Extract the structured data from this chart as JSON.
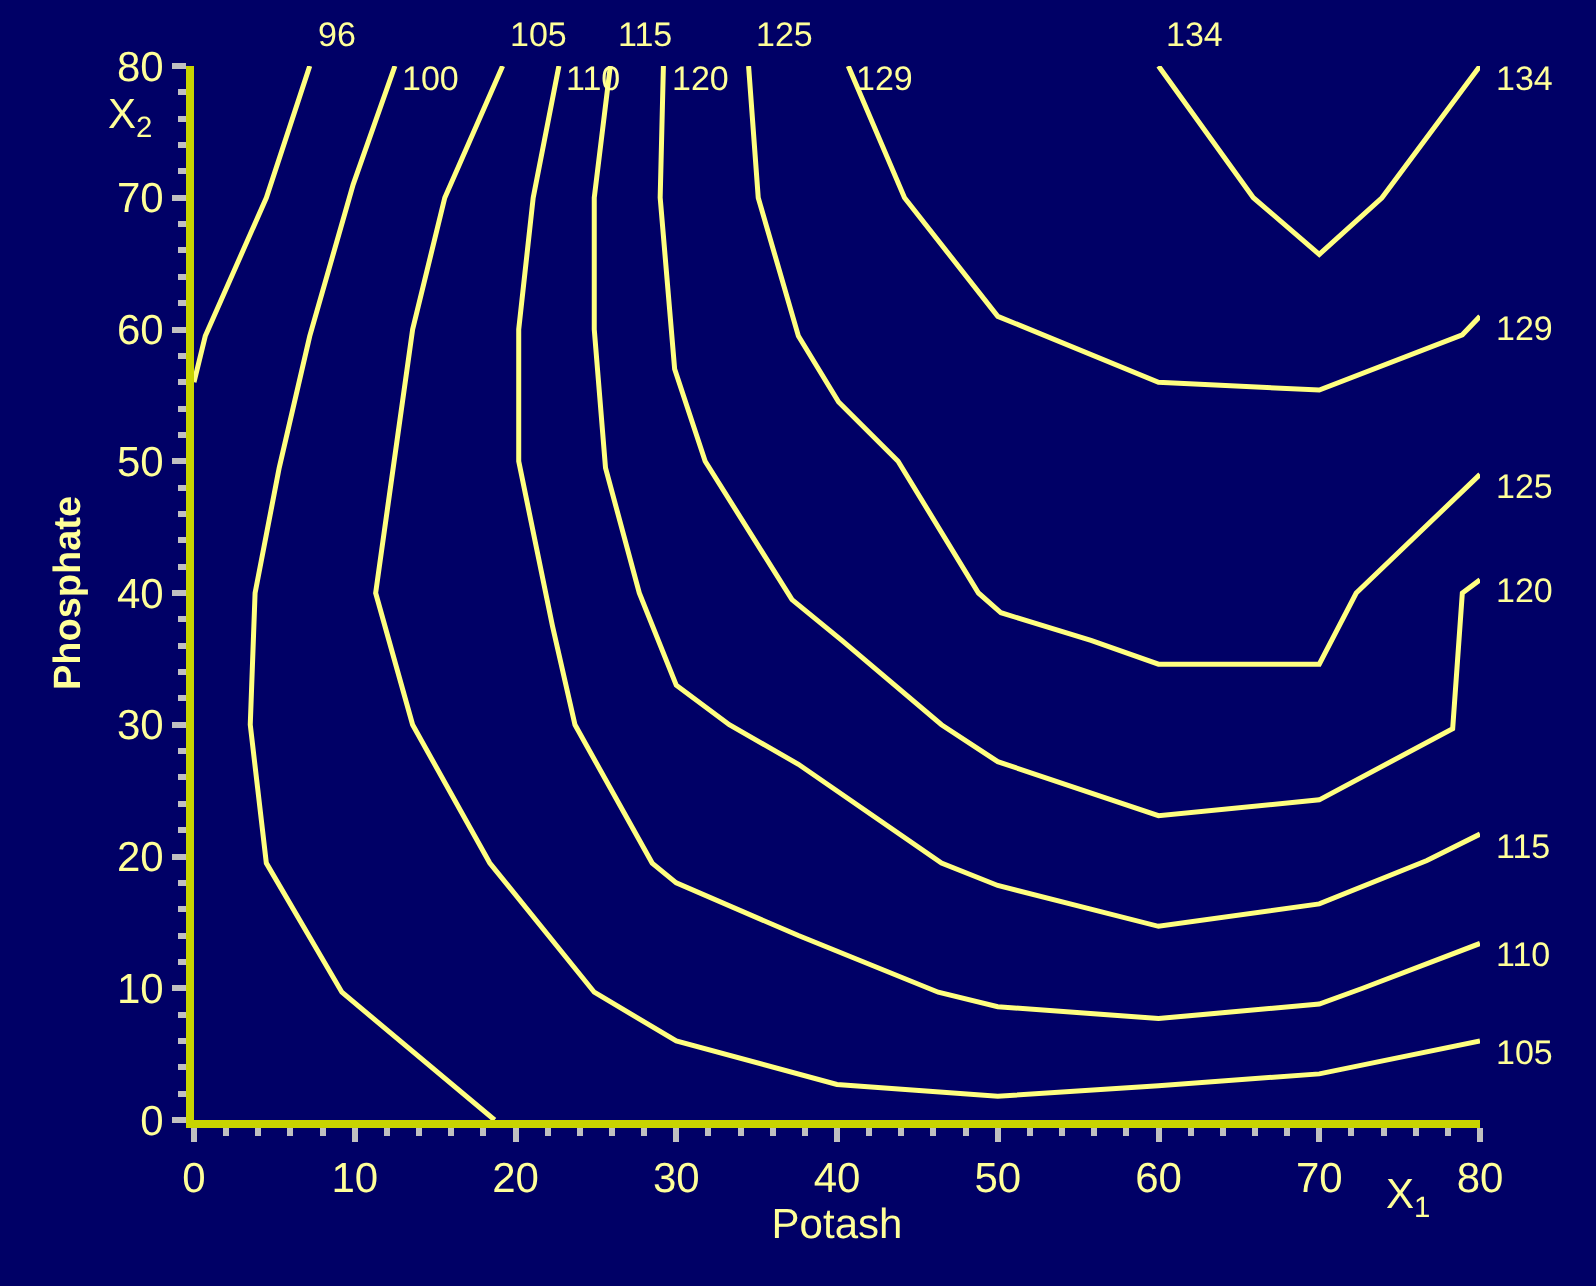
{
  "chart_data": {
    "type": "line",
    "xlabel": "Potash",
    "ylabel": "Phosphate",
    "annotations": [
      "X$_{1}$",
      "X$_{2}$"
    ],
    "xlim": [
      0,
      80
    ],
    "xticks": [
      0,
      10,
      20,
      30,
      40,
      50,
      60,
      70,
      80
    ],
    "ylim": [
      0,
      80
    ],
    "yticks": [
      0,
      10,
      20,
      30,
      40,
      50,
      60,
      70,
      80
    ],
    "grid": false,
    "legend": false,
    "marker": "none",
    "line_style": "solid",
    "series": [
      {
        "name": "96",
        "color": "#ffff80",
        "x": [
          7.2,
          4.5,
          0.7,
          0
        ],
        "values": [
          80,
          70,
          59.5,
          56
        ]
      },
      {
        "name": "100",
        "color": "#ffff80",
        "x": [
          12.5,
          9.9,
          7.2,
          5.3,
          3.8,
          3.5,
          4.5,
          9.2,
          18.7
        ],
        "values": [
          80,
          71,
          59.5,
          49.5,
          40,
          30,
          19.5,
          9.7,
          0
        ]
      },
      {
        "name": "105",
        "color": "#ffff80",
        "x": [
          19.2,
          15.6,
          13.6,
          11.3,
          13.6,
          18.4,
          24.9,
          30,
          40,
          50,
          60,
          70,
          80
        ],
        "values": [
          80,
          70,
          60,
          40,
          30,
          19.5,
          9.7,
          6,
          2.7,
          1.8,
          2.6,
          3.5,
          6
        ]
      },
      {
        "name": "110",
        "color": "#ffff80",
        "x": [
          22.7,
          21.1,
          20.2,
          20.2,
          22.3,
          23.7,
          28.5,
          30,
          37.6,
          46.3,
          50,
          60,
          70,
          72.7,
          80
        ],
        "values": [
          80,
          70,
          60,
          50,
          37.5,
          30,
          19.5,
          18,
          14,
          9.7,
          8.6,
          7.7,
          8.8,
          10,
          13.4
        ]
      },
      {
        "name": "115",
        "color": "#ffff80",
        "x": [
          25.9,
          24.9,
          24.9,
          25.6,
          27.7,
          30,
          33.3,
          37.6,
          46.5,
          50,
          60,
          70,
          76.7,
          80
        ],
        "values": [
          80,
          70,
          60,
          49.5,
          40,
          33,
          30,
          27,
          19.5,
          17.8,
          14.7,
          16.4,
          19.7,
          21.7
        ]
      },
      {
        "name": "120",
        "color": "#ffff80",
        "x": [
          29.2,
          29,
          29.9,
          31.8,
          37.2,
          40.3,
          46.5,
          50,
          60,
          70,
          78.3,
          78.9,
          80
        ],
        "values": [
          80,
          70,
          57,
          50,
          39.5,
          36.4,
          30,
          27.2,
          23.1,
          24.3,
          29.7,
          40,
          41
        ]
      },
      {
        "name": "125",
        "color": "#ffff80",
        "x": [
          34.5,
          35.1,
          37.6,
          40.1,
          43.8,
          48.8,
          50.2,
          55.8,
          60,
          70,
          72.3,
          80
        ],
        "values": [
          80,
          70,
          59.5,
          54.5,
          50,
          40,
          38.5,
          36.4,
          34.6,
          34.6,
          40,
          49
        ]
      },
      {
        "name": "129",
        "color": "#ffff80",
        "x": [
          40.7,
          44.2,
          50,
          60,
          70,
          78.9,
          80
        ],
        "values": [
          80,
          70,
          61,
          56,
          55.4,
          59.6,
          61
        ]
      },
      {
        "name": "134",
        "color": "#ffff80",
        "x": [
          60,
          65.9,
          70,
          73.9,
          80
        ],
        "values": [
          80,
          70,
          65.7,
          70,
          80
        ]
      }
    ]
  }
}
